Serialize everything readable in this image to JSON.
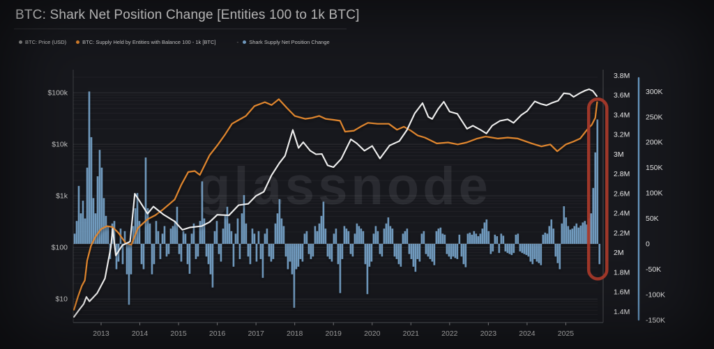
{
  "header": {
    "title": "BTC: Shark Net Position Change [Entities 100 to 1k BTC]"
  },
  "legend": [
    {
      "label": "BTC: Price (USD)",
      "color": "#a0a0a0"
    },
    {
      "label": "BTC: Supply Held by Entities with Balance 100 - 1k [BTC]",
      "color": "#e0862e"
    },
    {
      "label": "Shark Supply Net Position Change",
      "color": "#7ba8cf",
      "separator": "-"
    }
  ],
  "watermark": "glassnode",
  "chart_data": {
    "type": "line+bar",
    "title": "BTC: Shark Net Position Change [Entities 100 to 1k BTC]",
    "grid": "log-price horizontal gridlines",
    "x_axis": {
      "years": [
        "2013",
        "2014",
        "2015",
        "2016",
        "2017",
        "2018",
        "2019",
        "2020",
        "2021",
        "2022",
        "2023",
        "2024",
        "2025"
      ],
      "range": [
        2012.28,
        2025.82
      ]
    },
    "y_axes": [
      {
        "id": "price",
        "side": "left",
        "scale": "log",
        "range": [
          3.5,
          280000
        ],
        "ticks": [
          {
            "value": 100000,
            "label": "$100k"
          },
          {
            "value": 10000,
            "label": "$10k"
          },
          {
            "value": 1000,
            "label": "$1k"
          },
          {
            "value": 100,
            "label": "$100"
          },
          {
            "value": 10,
            "label": "$10"
          }
        ]
      },
      {
        "id": "supply",
        "side": "right-inner",
        "scale": "linear",
        "range": [
          1.29,
          3.86
        ],
        "ticks": [
          {
            "value": 3.8,
            "label": "3.8M"
          },
          {
            "value": 3.6,
            "label": "3.6M"
          },
          {
            "value": 3.4,
            "label": "3.4M"
          },
          {
            "value": 3.2,
            "label": "3.2M"
          },
          {
            "value": 3.0,
            "label": "3M"
          },
          {
            "value": 2.8,
            "label": "2.8M"
          },
          {
            "value": 2.6,
            "label": "2.6M"
          },
          {
            "value": 2.4,
            "label": "2.4M"
          },
          {
            "value": 2.2,
            "label": "2.2M"
          },
          {
            "value": 2.0,
            "label": "2M"
          },
          {
            "value": 1.8,
            "label": "1.8M"
          },
          {
            "value": 1.6,
            "label": "1.6M"
          },
          {
            "value": 1.4,
            "label": "1.4M"
          }
        ]
      },
      {
        "id": "net",
        "side": "right-outer",
        "scale": "linear",
        "range": [
          -155,
          343
        ],
        "ticks": [
          {
            "value": 300,
            "label": "300K"
          },
          {
            "value": 250,
            "label": "250K"
          },
          {
            "value": 200,
            "label": "200K"
          },
          {
            "value": 150,
            "label": "150K"
          },
          {
            "value": 100,
            "label": "100K"
          },
          {
            "value": 50,
            "label": "50K"
          },
          {
            "value": 0,
            "label": "0"
          },
          {
            "value": -50,
            "label": "-50K"
          },
          {
            "value": -100,
            "label": "-100K"
          },
          {
            "value": -150,
            "label": "-150K"
          }
        ]
      }
    ],
    "series": [
      {
        "name": "BTC: Price (USD)",
        "type": "line",
        "axis": "price",
        "color": "#efefef",
        "unit": "USD",
        "points": [
          [
            2012.3,
            4.5
          ],
          [
            2012.42,
            6.0
          ],
          [
            2012.55,
            8.0
          ],
          [
            2012.62,
            11.0
          ],
          [
            2012.7,
            9.0
          ],
          [
            2012.9,
            13.0
          ],
          [
            2013.1,
            25
          ],
          [
            2013.25,
            100
          ],
          [
            2013.3,
            230
          ],
          [
            2013.38,
            70
          ],
          [
            2013.55,
            110
          ],
          [
            2013.75,
            130
          ],
          [
            2013.87,
            1100
          ],
          [
            2014.0,
            780
          ],
          [
            2014.2,
            450
          ],
          [
            2014.35,
            620
          ],
          [
            2014.6,
            440
          ],
          [
            2014.9,
            320
          ],
          [
            2015.1,
            220
          ],
          [
            2015.3,
            245
          ],
          [
            2015.6,
            260
          ],
          [
            2015.8,
            310
          ],
          [
            2016.0,
            430
          ],
          [
            2016.3,
            420
          ],
          [
            2016.55,
            660
          ],
          [
            2016.8,
            700
          ],
          [
            2017.0,
            1000
          ],
          [
            2017.2,
            1200
          ],
          [
            2017.4,
            2500
          ],
          [
            2017.6,
            4300
          ],
          [
            2017.75,
            6000
          ],
          [
            2017.95,
            19000
          ],
          [
            2018.1,
            8500
          ],
          [
            2018.22,
            11000
          ],
          [
            2018.4,
            7500
          ],
          [
            2018.55,
            6400
          ],
          [
            2018.7,
            6500
          ],
          [
            2018.85,
            3900
          ],
          [
            2019.0,
            3600
          ],
          [
            2019.2,
            5200
          ],
          [
            2019.45,
            12500
          ],
          [
            2019.6,
            10500
          ],
          [
            2019.8,
            7500
          ],
          [
            2020.0,
            9300
          ],
          [
            2020.2,
            5300
          ],
          [
            2020.45,
            9500
          ],
          [
            2020.7,
            11500
          ],
          [
            2020.9,
            19000
          ],
          [
            2021.1,
            40000
          ],
          [
            2021.3,
            63000
          ],
          [
            2021.45,
            34000
          ],
          [
            2021.55,
            31000
          ],
          [
            2021.7,
            48000
          ],
          [
            2021.85,
            67000
          ],
          [
            2022.0,
            43000
          ],
          [
            2022.2,
            39000
          ],
          [
            2022.45,
            20000
          ],
          [
            2022.6,
            23000
          ],
          [
            2022.8,
            19000
          ],
          [
            2022.95,
            16200
          ],
          [
            2023.1,
            23000
          ],
          [
            2023.3,
            28500
          ],
          [
            2023.5,
            30500
          ],
          [
            2023.65,
            26000
          ],
          [
            2023.85,
            37000
          ],
          [
            2024.0,
            44000
          ],
          [
            2024.2,
            68000
          ],
          [
            2024.35,
            61000
          ],
          [
            2024.5,
            57000
          ],
          [
            2024.65,
            64000
          ],
          [
            2024.8,
            70000
          ],
          [
            2024.95,
            98000
          ],
          [
            2025.1,
            95000
          ],
          [
            2025.2,
            83000
          ],
          [
            2025.35,
            97000
          ],
          [
            2025.5,
            110000
          ],
          [
            2025.6,
            117000
          ],
          [
            2025.7,
            108000
          ],
          [
            2025.8,
            86000
          ]
        ]
      },
      {
        "name": "BTC: Supply Held by Entities with Balance 100 - 1k [BTC]",
        "type": "line",
        "axis": "supply",
        "color": "#e0862e",
        "unit": "M BTC",
        "points": [
          [
            2012.3,
            1.42
          ],
          [
            2012.4,
            1.55
          ],
          [
            2012.5,
            1.66
          ],
          [
            2012.58,
            1.72
          ],
          [
            2012.64,
            1.92
          ],
          [
            2012.74,
            2.07
          ],
          [
            2012.85,
            2.16
          ],
          [
            2013.0,
            2.24
          ],
          [
            2013.15,
            2.27
          ],
          [
            2013.3,
            2.26
          ],
          [
            2013.45,
            2.2
          ],
          [
            2013.63,
            2.1
          ],
          [
            2013.78,
            2.08
          ],
          [
            2013.95,
            2.25
          ],
          [
            2014.2,
            2.34
          ],
          [
            2014.4,
            2.38
          ],
          [
            2014.6,
            2.44
          ],
          [
            2014.9,
            2.54
          ],
          [
            2015.07,
            2.69
          ],
          [
            2015.25,
            2.82
          ],
          [
            2015.42,
            2.83
          ],
          [
            2015.55,
            2.79
          ],
          [
            2015.8,
            2.99
          ],
          [
            2016.02,
            3.1
          ],
          [
            2016.2,
            3.2
          ],
          [
            2016.38,
            3.31
          ],
          [
            2016.56,
            3.35
          ],
          [
            2016.74,
            3.39
          ],
          [
            2016.96,
            3.49
          ],
          [
            2017.23,
            3.53
          ],
          [
            2017.4,
            3.5
          ],
          [
            2017.59,
            3.56
          ],
          [
            2017.8,
            3.47
          ],
          [
            2018.0,
            3.39
          ],
          [
            2018.27,
            3.36
          ],
          [
            2018.45,
            3.37
          ],
          [
            2018.63,
            3.39
          ],
          [
            2018.8,
            3.36
          ],
          [
            2019.0,
            3.35
          ],
          [
            2019.17,
            3.34
          ],
          [
            2019.3,
            3.23
          ],
          [
            2019.53,
            3.24
          ],
          [
            2019.7,
            3.28
          ],
          [
            2019.89,
            3.32
          ],
          [
            2020.14,
            3.31
          ],
          [
            2020.43,
            3.31
          ],
          [
            2020.64,
            3.25
          ],
          [
            2020.82,
            3.28
          ],
          [
            2021.0,
            3.24
          ],
          [
            2021.18,
            3.19
          ],
          [
            2021.36,
            3.17
          ],
          [
            2021.67,
            3.11
          ],
          [
            2021.96,
            3.12
          ],
          [
            2022.21,
            3.1
          ],
          [
            2022.44,
            3.12
          ],
          [
            2022.71,
            3.16
          ],
          [
            2022.93,
            3.18
          ],
          [
            2023.25,
            3.16
          ],
          [
            2023.5,
            3.17
          ],
          [
            2023.76,
            3.16
          ],
          [
            2024.12,
            3.11
          ],
          [
            2024.37,
            3.08
          ],
          [
            2024.6,
            3.1
          ],
          [
            2024.78,
            3.03
          ],
          [
            2025.0,
            3.1
          ],
          [
            2025.2,
            3.13
          ],
          [
            2025.37,
            3.16
          ],
          [
            2025.55,
            3.25
          ],
          [
            2025.67,
            3.3
          ],
          [
            2025.76,
            3.37
          ],
          [
            2025.81,
            3.53
          ]
        ]
      },
      {
        "name": "Shark Supply Net Position Change",
        "type": "bar",
        "axis": "net",
        "color": "#7ba8cf",
        "unit": "K BTC",
        "start": 2012.316,
        "step": 0.054,
        "values": [
          20,
          45,
          114,
          60,
          85,
          50,
          150,
          300,
          210,
          90,
          60,
          133,
          185,
          150,
          90,
          55,
          35,
          -30,
          40,
          45,
          -50,
          -35,
          30,
          -40,
          25,
          -60,
          -120,
          -60,
          35,
          70,
          100,
          45,
          -40,
          -50,
          170,
          70,
          40,
          -60,
          -40,
          45,
          25,
          -30,
          20,
          35,
          -25,
          -20,
          30,
          35,
          45,
          73,
          -20,
          -35,
          25,
          20,
          -40,
          -59,
          20,
          40,
          -30,
          -25,
          45,
          123,
          50,
          -25,
          -40,
          -60,
          -86,
          25,
          45,
          -20,
          -35,
          30,
          55,
          73,
          40,
          25,
          -45,
          20,
          50,
          -30,
          60,
          96,
          40,
          -25,
          -40,
          30,
          20,
          -35,
          25,
          -30,
          -67,
          20,
          30,
          -25,
          -35,
          -30,
          40,
          60,
          88,
          50,
          35,
          -25,
          -50,
          -35,
          -60,
          -126,
          -50,
          -45,
          -30,
          -35,
          20,
          25,
          -20,
          -30,
          -25,
          35,
          25,
          40,
          55,
          83,
          30,
          -25,
          -30,
          -35,
          20,
          30,
          -40,
          -97,
          -30,
          35,
          30,
          25,
          -20,
          -25,
          20,
          40,
          35,
          30,
          25,
          -40,
          -99,
          -45,
          -35,
          20,
          35,
          25,
          -20,
          -25,
          30,
          40,
          52,
          35,
          30,
          -25,
          -30,
          -40,
          -45,
          20,
          25,
          30,
          -20,
          -30,
          -45,
          -55,
          -30,
          -35,
          20,
          25,
          -20,
          -25,
          -30,
          -35,
          -42,
          25,
          30,
          32,
          20,
          18,
          -20,
          -25,
          -30,
          -25,
          -28,
          -30,
          18,
          -25,
          -40,
          -46,
          20,
          22,
          18,
          25,
          20,
          15,
          20,
          30,
          42,
          48,
          25,
          -20,
          -15,
          18,
          15,
          -18,
          20,
          16,
          -15,
          -18,
          -20,
          -22,
          -18,
          18,
          20,
          -15,
          -18,
          -20,
          -22,
          -25,
          -35,
          -40,
          -30,
          -35,
          -38,
          -42,
          18,
          22,
          20,
          35,
          48,
          30,
          -25,
          -38,
          -50,
          40,
          74,
          52,
          35,
          28,
          30,
          35,
          40,
          32,
          36,
          42,
          45,
          38,
          50,
          60,
          110,
          180,
          245,
          -40
        ]
      }
    ],
    "annotation": {
      "shape": "capsule",
      "color": "#a6392a",
      "year_range": [
        2025.59,
        2026.06
      ],
      "net_range": [
        285,
        -69
      ],
      "meaning": "highlights final shark supply spike"
    },
    "colors": {
      "zero_line": "rgba(255,255,255,0.22)",
      "net_axis_line": "#6fa3cf"
    },
    "legend_position": "top-left"
  }
}
